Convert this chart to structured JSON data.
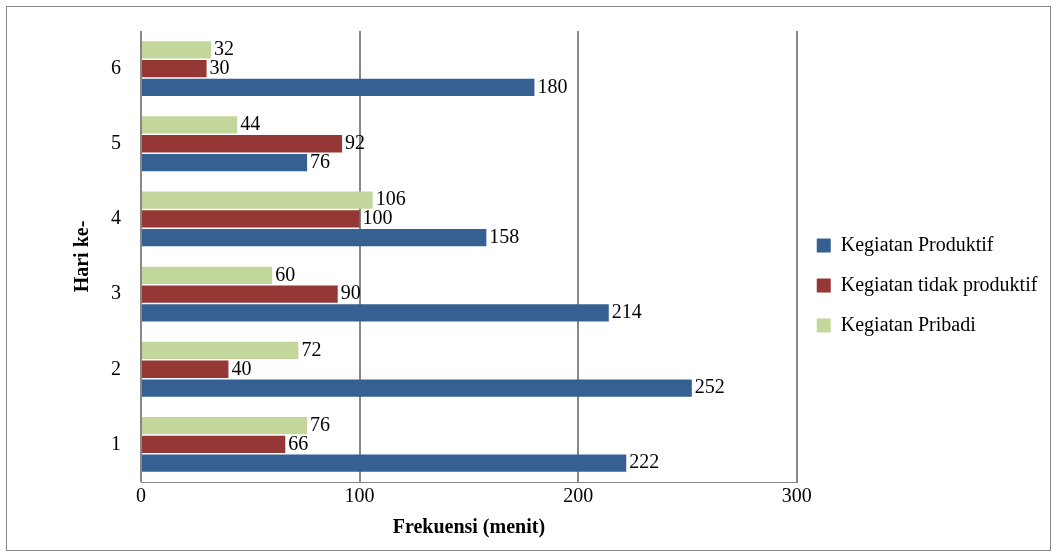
{
  "chart_data": {
    "type": "bar",
    "orientation": "horizontal",
    "xlabel": "Frekuensi (menit)",
    "ylabel": "Hari ke-",
    "categories": [
      "6",
      "5",
      "4",
      "3",
      "2",
      "1"
    ],
    "series": [
      {
        "name": "Kegiatan Pribadi",
        "color": "#c3d69b",
        "values": [
          32,
          44,
          106,
          60,
          72,
          76
        ]
      },
      {
        "name": "Kegiatan tidak produktif",
        "color": "#953735",
        "values": [
          30,
          92,
          100,
          90,
          40,
          66
        ]
      },
      {
        "name": "Kegiatan Produktif",
        "color": "#376092",
        "values": [
          180,
          76,
          158,
          214,
          252,
          222
        ]
      }
    ],
    "xlim": [
      0,
      300
    ],
    "xticks": [
      0,
      100,
      200,
      300
    ],
    "grid": "x",
    "legend": "right",
    "data_labels": true
  }
}
